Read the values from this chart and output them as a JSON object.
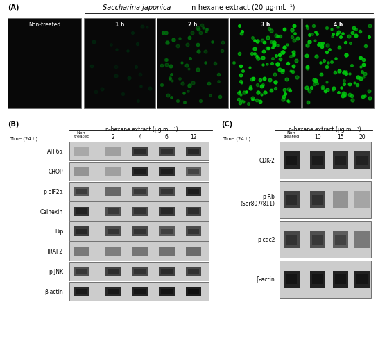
{
  "panel_A_label": "(A)",
  "panel_B_label": "(B)",
  "panel_C_label": "(C)",
  "title_italic": "Saccharina japonica",
  "title_normal": " n-hexane extract (20 μg·mL⁻¹)",
  "panel_A_timepoints": [
    "Non-treated",
    "1 h",
    "2 h",
    "3 h",
    "4 h"
  ],
  "panel_B_header": "n-hexane extract (μg·mL⁻¹)",
  "panel_B_time_label": "Time (24 h)",
  "panel_B_columns": [
    "Non-\ntreated",
    "2",
    "4",
    "6",
    "12"
  ],
  "panel_B_proteins": [
    "ATF6α",
    "CHOP",
    "p-eIF2α",
    "Calnexin",
    "Bip",
    "TRAF2",
    "p-JNK",
    "β-actin"
  ],
  "panel_C_header": "n-hexane extract (μg·mL⁻¹)",
  "panel_C_time_label": "Time (24 h)",
  "panel_C_columns": [
    "Non-\ntreated",
    "10",
    "15",
    "20"
  ],
  "panel_C_proteins": [
    "CDK-2",
    "p-Rb\n(Ser807/811)",
    "p-cdc2",
    "β-actin"
  ],
  "bg_color": "#ffffff"
}
